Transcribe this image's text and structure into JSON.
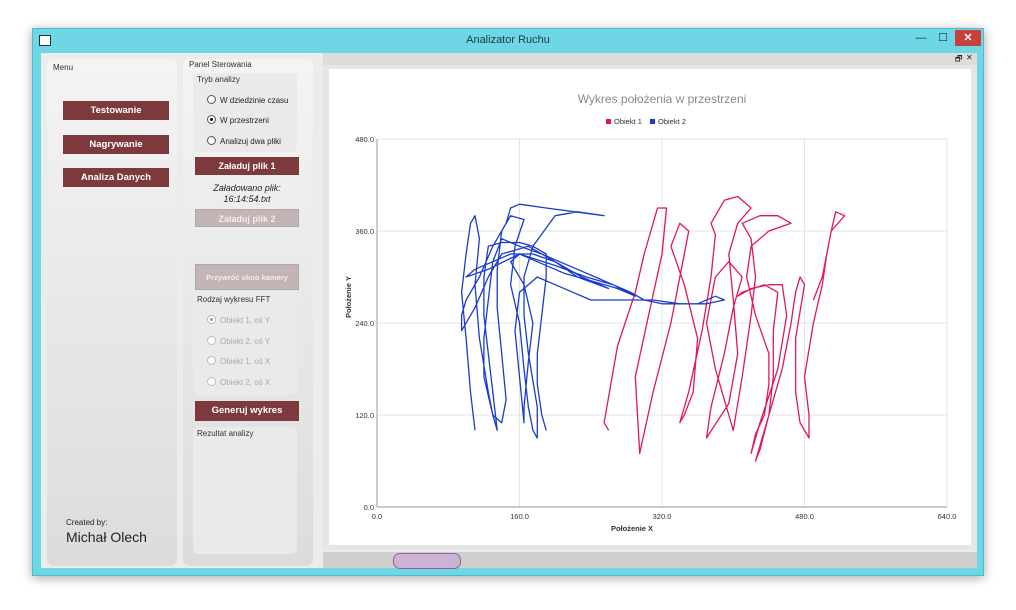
{
  "window": {
    "title": "Analizator Ruchu",
    "min": "—",
    "max": "☐",
    "close": "✕"
  },
  "menu": {
    "label": "Menu",
    "buttons": [
      "Testowanie",
      "Nagrywanie",
      "Analiza Danych"
    ],
    "created_by": "Created by:",
    "author": "Michał Olech"
  },
  "control": {
    "label": "Panel Sterowania",
    "mode_label": "Tryb analizy",
    "modes": [
      {
        "label": "W dziedzinie czasu",
        "selected": false
      },
      {
        "label": "W przestrzeni",
        "selected": true
      },
      {
        "label": "Analizuj dwa pliki",
        "selected": false
      }
    ],
    "load1": "Załaduj plik 1",
    "loaded_line1": "Załadowano plik:",
    "loaded_line2": "16:14:54.txt",
    "load2": "Załaduj plik 2",
    "restore_camera": "Przywróć okno kamery",
    "fft_label": "Rodzaj wykresu FFT",
    "fft_options": [
      {
        "label": "Obiekt 1, oś Y",
        "selected": true
      },
      {
        "label": "Obiekt 2, oś Y",
        "selected": false
      },
      {
        "label": "Obiekt 1, oś X",
        "selected": false
      },
      {
        "label": "Obiekt 2, oś X",
        "selected": false
      }
    ],
    "generate": "Generuj wykres",
    "result_label": "Rezultat analizy"
  },
  "chart_header": {
    "restore": "🗗",
    "close": "✕"
  },
  "chart_data": {
    "type": "line",
    "title": "Wykres położenia w przestrzeni",
    "xlabel": "Położenie X",
    "ylabel": "Położenie Y",
    "xlim": [
      0,
      640
    ],
    "ylim": [
      0,
      480
    ],
    "xticks": [
      "0.0",
      "160.0",
      "320.0",
      "480.0",
      "640.0"
    ],
    "yticks": [
      "0.0",
      "120.0",
      "240.0",
      "360.0",
      "480.0"
    ],
    "grid": true,
    "legend_position": "top-center",
    "series": [
      {
        "name": "Obiekt 1",
        "color": "#e0175a",
        "points": [
          [
            260,
            100
          ],
          [
            255,
            110
          ],
          [
            270,
            210
          ],
          [
            290,
            280
          ],
          [
            300,
            330
          ],
          [
            315,
            390
          ],
          [
            325,
            390
          ],
          [
            320,
            330
          ],
          [
            305,
            250
          ],
          [
            290,
            170
          ],
          [
            295,
            70
          ],
          [
            310,
            150
          ],
          [
            330,
            240
          ],
          [
            345,
            330
          ],
          [
            350,
            360
          ],
          [
            340,
            370
          ],
          [
            330,
            340
          ],
          [
            345,
            290
          ],
          [
            360,
            220
          ],
          [
            355,
            150
          ],
          [
            345,
            120
          ],
          [
            340,
            110
          ],
          [
            350,
            150
          ],
          [
            365,
            230
          ],
          [
            375,
            300
          ],
          [
            380,
            355
          ],
          [
            375,
            370
          ],
          [
            390,
            400
          ],
          [
            405,
            405
          ],
          [
            420,
            390
          ],
          [
            405,
            370
          ],
          [
            395,
            330
          ],
          [
            400,
            270
          ],
          [
            405,
            200
          ],
          [
            395,
            135
          ],
          [
            370,
            90
          ],
          [
            375,
            130
          ],
          [
            390,
            200
          ],
          [
            400,
            260
          ],
          [
            410,
            300
          ],
          [
            395,
            320
          ],
          [
            380,
            300
          ],
          [
            370,
            240
          ],
          [
            380,
            180
          ],
          [
            395,
            120
          ],
          [
            400,
            100
          ],
          [
            410,
            170
          ],
          [
            420,
            250
          ],
          [
            425,
            300
          ],
          [
            420,
            350
          ],
          [
            410,
            370
          ],
          [
            430,
            380
          ],
          [
            450,
            380
          ],
          [
            465,
            370
          ],
          [
            440,
            360
          ],
          [
            420,
            340
          ],
          [
            415,
            300
          ],
          [
            425,
            250
          ],
          [
            440,
            200
          ],
          [
            440,
            160
          ],
          [
            435,
            120
          ],
          [
            425,
            95
          ],
          [
            420,
            70
          ],
          [
            430,
            110
          ],
          [
            450,
            180
          ],
          [
            460,
            250
          ],
          [
            455,
            290
          ],
          [
            440,
            290
          ],
          [
            420,
            285
          ],
          [
            405,
            275
          ],
          [
            410,
            280
          ],
          [
            435,
            290
          ],
          [
            450,
            280
          ],
          [
            445,
            230
          ],
          [
            445,
            170
          ],
          [
            440,
            120
          ],
          [
            430,
            75
          ],
          [
            425,
            60
          ],
          [
            440,
            120
          ],
          [
            455,
            180
          ],
          [
            465,
            240
          ],
          [
            470,
            280
          ],
          [
            475,
            300
          ],
          [
            480,
            290
          ],
          [
            470,
            220
          ],
          [
            470,
            150
          ],
          [
            475,
            110
          ],
          [
            485,
            90
          ],
          [
            485,
            120
          ],
          [
            480,
            170
          ],
          [
            490,
            240
          ],
          [
            500,
            290
          ],
          [
            505,
            330
          ],
          [
            510,
            360
          ],
          [
            515,
            385
          ],
          [
            525,
            380
          ],
          [
            510,
            360
          ],
          [
            500,
            300
          ],
          [
            490,
            270
          ]
        ]
      },
      {
        "name": "Obiekt 2",
        "color": "#1a3ccc",
        "points": [
          [
            110,
            100
          ],
          [
            105,
            150
          ],
          [
            100,
            220
          ],
          [
            95,
            280
          ],
          [
            100,
            330
          ],
          [
            105,
            370
          ],
          [
            110,
            380
          ],
          [
            115,
            350
          ],
          [
            110,
            290
          ],
          [
            115,
            220
          ],
          [
            125,
            150
          ],
          [
            130,
            120
          ],
          [
            140,
            110
          ],
          [
            145,
            140
          ],
          [
            140,
            200
          ],
          [
            135,
            260
          ],
          [
            135,
            310
          ],
          [
            140,
            360
          ],
          [
            150,
            380
          ],
          [
            165,
            375
          ],
          [
            155,
            340
          ],
          [
            150,
            290
          ],
          [
            160,
            240
          ],
          [
            165,
            180
          ],
          [
            170,
            130
          ],
          [
            175,
            100
          ],
          [
            180,
            90
          ],
          [
            180,
            130
          ],
          [
            170,
            200
          ],
          [
            165,
            250
          ],
          [
            165,
            300
          ],
          [
            175,
            340
          ],
          [
            200,
            380
          ],
          [
            225,
            385
          ],
          [
            255,
            380
          ],
          [
            190,
            390
          ],
          [
            160,
            395
          ],
          [
            150,
            390
          ],
          [
            145,
            370
          ],
          [
            130,
            340
          ],
          [
            115,
            300
          ],
          [
            100,
            270
          ],
          [
            95,
            250
          ],
          [
            95,
            230
          ],
          [
            110,
            260
          ],
          [
            125,
            300
          ],
          [
            140,
            330
          ],
          [
            170,
            340
          ],
          [
            200,
            320
          ],
          [
            230,
            300
          ],
          [
            260,
            285
          ],
          [
            225,
            300
          ],
          [
            200,
            320
          ],
          [
            175,
            330
          ],
          [
            150,
            330
          ],
          [
            130,
            320
          ],
          [
            110,
            310
          ],
          [
            100,
            300
          ],
          [
            125,
            310
          ],
          [
            160,
            330
          ],
          [
            200,
            315
          ],
          [
            235,
            300
          ],
          [
            265,
            290
          ],
          [
            290,
            275
          ],
          [
            270,
            285
          ],
          [
            240,
            295
          ],
          [
            210,
            305
          ],
          [
            180,
            320
          ],
          [
            160,
            330
          ],
          [
            150,
            320
          ],
          [
            165,
            290
          ],
          [
            175,
            240
          ],
          [
            170,
            190
          ],
          [
            165,
            130
          ],
          [
            165,
            110
          ],
          [
            160,
            170
          ],
          [
            155,
            230
          ],
          [
            160,
            280
          ],
          [
            180,
            300
          ],
          [
            200,
            290
          ],
          [
            220,
            280
          ],
          [
            240,
            270
          ],
          [
            260,
            270
          ],
          [
            285,
            270
          ],
          [
            310,
            270
          ],
          [
            340,
            265
          ],
          [
            360,
            265
          ],
          [
            380,
            275
          ],
          [
            390,
            270
          ],
          [
            370,
            265
          ],
          [
            350,
            265
          ],
          [
            320,
            265
          ],
          [
            300,
            270
          ],
          [
            285,
            280
          ],
          [
            265,
            290
          ],
          [
            245,
            300
          ],
          [
            225,
            310
          ],
          [
            205,
            320
          ],
          [
            185,
            330
          ],
          [
            160,
            340
          ],
          [
            140,
            350
          ],
          [
            130,
            320
          ],
          [
            125,
            270
          ],
          [
            120,
            220
          ],
          [
            120,
            170
          ],
          [
            130,
            120
          ],
          [
            135,
            100
          ],
          [
            130,
            150
          ],
          [
            125,
            200
          ],
          [
            120,
            250
          ],
          [
            120,
            300
          ],
          [
            125,
            340
          ],
          [
            140,
            345
          ],
          [
            160,
            345
          ],
          [
            175,
            340
          ],
          [
            190,
            330
          ],
          [
            190,
            300
          ],
          [
            185,
            250
          ],
          [
            180,
            200
          ],
          [
            180,
            160
          ],
          [
            185,
            120
          ],
          [
            190,
            100
          ]
        ]
      }
    ]
  }
}
